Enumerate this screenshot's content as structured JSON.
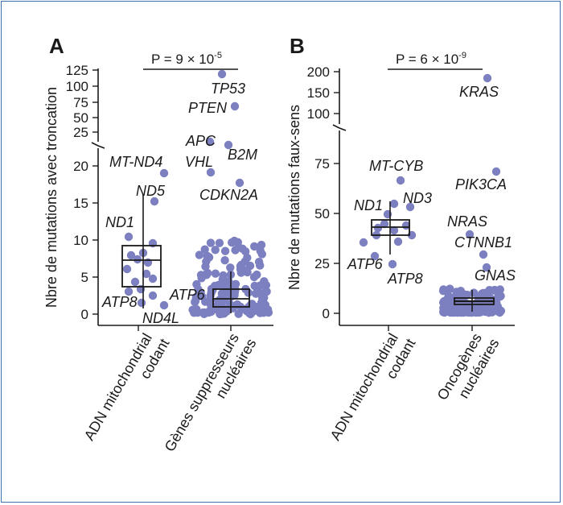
{
  "colors": {
    "point": "#7c7fc0",
    "axis": "#1a1a1a",
    "frame": "#3e6fa8"
  },
  "chart_data": [
    {
      "type": "box-scatter",
      "panel": "A",
      "ylabel": "Nbre de mutations avec troncation",
      "categories": [
        "ADN mitochondrial codant",
        "Gènes suppresseurs nucléaires"
      ],
      "category_lines": [
        [
          "ADN mitochondrial",
          "codant"
        ],
        [
          "Gènes suppresseurs",
          "nucléaires"
        ]
      ],
      "pvalue": {
        "base": "P = 9 × 10",
        "exp": "-5"
      },
      "axis_break": true,
      "lower_ticks": [
        "0",
        "5",
        "10",
        "15",
        "20"
      ],
      "upper_ticks": [
        "25",
        "50",
        "75",
        "100",
        "125"
      ],
      "boxes": [
        {
          "q1": 3.6,
          "median": 7.2,
          "q3": 9.3,
          "low": 1.2,
          "high": 15.0
        },
        {
          "q1": 1.0,
          "median": 2.0,
          "q3": 3.4,
          "low": 0.2,
          "high": 5.8
        }
      ],
      "labeled_points": [
        {
          "label": "MT-ND4",
          "value": 19
        },
        {
          "label": "ND5",
          "value": 15
        },
        {
          "label": "ND1",
          "value": 10.5
        },
        {
          "label": "ATP6",
          "value": 2.6
        },
        {
          "label": "ATP8",
          "value": 3.0
        },
        {
          "label": "ND4L",
          "value": 1.2
        },
        {
          "label": "TP53",
          "value": 120
        },
        {
          "label": "PTEN",
          "value": 65
        },
        {
          "label": "APC",
          "value": 33
        },
        {
          "label": "B2M",
          "value": 29
        },
        {
          "label": "VHL",
          "value": 19
        },
        {
          "label": "CDKN2A",
          "value": 17.5
        }
      ]
    },
    {
      "type": "box-scatter",
      "panel": "B",
      "ylabel": "Nbre de mutations faux-sens",
      "categories": [
        "ADN mitochondrial codant",
        "Oncogènes nucléaires"
      ],
      "category_lines": [
        [
          "ADN mitochondrial",
          "codant"
        ],
        [
          "Oncogènes",
          "nucléaires"
        ]
      ],
      "pvalue": {
        "base": "P = 6 × 10",
        "exp": "-9"
      },
      "axis_break": true,
      "lower_ticks": [
        "0",
        "25",
        "50",
        "75"
      ],
      "upper_ticks": [
        "100",
        "150",
        "200"
      ],
      "boxes": [
        {
          "q1": 40,
          "median": 43,
          "q3": 46,
          "low": 30,
          "high": 56
        },
        {
          "q1": 5,
          "median": 6.5,
          "q3": 8,
          "low": 0.5,
          "high": 12
        }
      ],
      "labeled_points": [
        {
          "label": "MT-CYB",
          "value": 67
        },
        {
          "label": "ND1",
          "value": 55
        },
        {
          "label": "ND3",
          "value": 52
        },
        {
          "label": "ATP6",
          "value": 28
        },
        {
          "label": "ATP8",
          "value": 24
        },
        {
          "label": "KRAS",
          "value": 185
        },
        {
          "label": "PIK3CA",
          "value": 71
        },
        {
          "label": "NRAS",
          "value": 40
        },
        {
          "label": "CTNNB1",
          "value": 30
        },
        {
          "label": "GNAS",
          "value": 22
        }
      ]
    }
  ]
}
